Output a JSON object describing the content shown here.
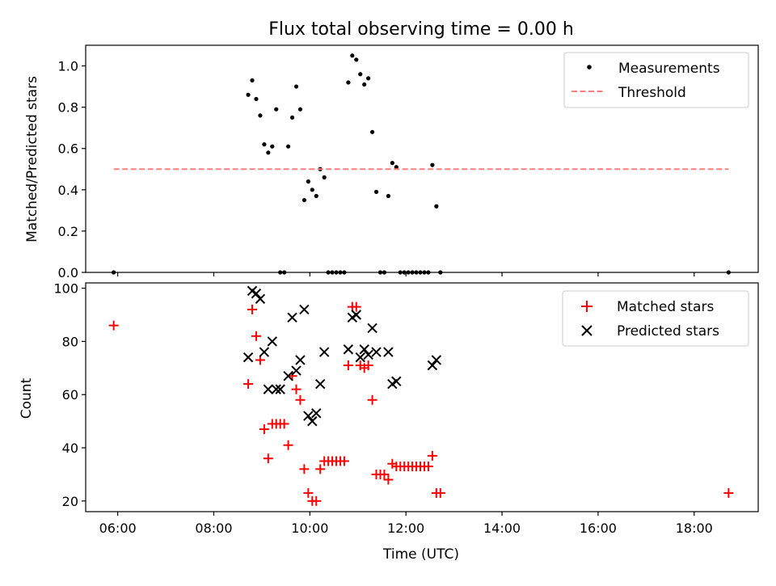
{
  "chart_data": [
    {
      "type": "scatter",
      "title": "Flux total observing time = 0.00 h",
      "xlabel": "",
      "ylabel": "Matched/Predicted stars",
      "xlim": [
        "05:20",
        "19:20"
      ],
      "ylim": [
        0,
        1.1
      ],
      "yticks": [
        0.0,
        0.2,
        0.4,
        0.6,
        0.8,
        1.0
      ],
      "ytick_labels": [
        "0.0",
        "0.2",
        "0.4",
        "0.6",
        "0.8",
        "1.0"
      ],
      "xticks": [
        "06:00",
        "08:00",
        "10:00",
        "12:00",
        "14:00",
        "16:00",
        "18:00"
      ],
      "xtick_labels_shown": false,
      "legend_position": "top-right",
      "series": [
        {
          "name": "Measurements",
          "kind": "points",
          "color": "#000000",
          "x": [
            "05:55",
            "08:43",
            "08:48",
            "08:53",
            "08:58",
            "09:03",
            "09:08",
            "09:13",
            "09:18",
            "09:23",
            "09:28",
            "09:33",
            "09:38",
            "09:43",
            "09:48",
            "09:53",
            "09:58",
            "10:03",
            "10:08",
            "10:13",
            "10:18",
            "10:23",
            "10:28",
            "10:33",
            "10:38",
            "10:43",
            "10:48",
            "10:53",
            "10:58",
            "11:03",
            "11:08",
            "11:13",
            "11:18",
            "11:23",
            "11:28",
            "11:33",
            "11:38",
            "11:43",
            "11:48",
            "11:53",
            "11:58",
            "12:03",
            "12:08",
            "12:13",
            "12:18",
            "12:23",
            "12:28",
            "12:33",
            "12:38",
            "12:43",
            "18:43"
          ],
          "y": [
            0.0,
            0.86,
            0.93,
            0.84,
            0.76,
            0.62,
            0.58,
            0.61,
            0.79,
            0.0,
            0.0,
            0.61,
            0.75,
            0.9,
            0.79,
            0.35,
            0.44,
            0.4,
            0.37,
            0.5,
            0.46,
            0.0,
            0.0,
            0.0,
            0.0,
            0.0,
            0.92,
            1.05,
            1.03,
            0.96,
            0.91,
            0.94,
            0.68,
            0.39,
            0.0,
            0.0,
            0.37,
            0.53,
            0.51,
            0.0,
            0.0,
            0.0,
            0.0,
            0.0,
            0.0,
            0.0,
            0.0,
            0.52,
            0.32,
            0.0,
            0.0
          ]
        },
        {
          "name": "Threshold",
          "kind": "dashed-line",
          "color": "#ff7f7f",
          "x": [
            "05:55",
            "18:43"
          ],
          "y": [
            0.5,
            0.5
          ]
        }
      ]
    },
    {
      "type": "scatter",
      "title": "",
      "xlabel": "Time (UTC)",
      "ylabel": "Count",
      "xlim": [
        "05:20",
        "19:20"
      ],
      "ylim": [
        16,
        102
      ],
      "yticks": [
        20,
        40,
        60,
        80,
        100
      ],
      "ytick_labels": [
        "20",
        "40",
        "60",
        "80",
        "100"
      ],
      "xticks": [
        "06:00",
        "08:00",
        "10:00",
        "12:00",
        "14:00",
        "16:00",
        "18:00"
      ],
      "xtick_labels": [
        "06:00",
        "08:00",
        "10:00",
        "12:00",
        "14:00",
        "16:00",
        "18:00"
      ],
      "legend_position": "top-right",
      "series": [
        {
          "name": "Matched stars",
          "marker": "plus",
          "color": "#ff0000",
          "x": [
            "05:55",
            "08:43",
            "08:48",
            "08:53",
            "08:58",
            "09:03",
            "09:08",
            "09:13",
            "09:18",
            "09:23",
            "09:28",
            "09:33",
            "09:38",
            "09:43",
            "09:48",
            "09:53",
            "09:58",
            "10:03",
            "10:08",
            "10:13",
            "10:18",
            "10:23",
            "10:28",
            "10:33",
            "10:38",
            "10:43",
            "10:48",
            "10:53",
            "10:58",
            "11:03",
            "11:08",
            "11:13",
            "11:18",
            "11:23",
            "11:28",
            "11:33",
            "11:38",
            "11:43",
            "11:48",
            "11:53",
            "11:58",
            "12:03",
            "12:08",
            "12:13",
            "12:18",
            "12:23",
            "12:28",
            "12:33",
            "12:38",
            "12:43",
            "18:43"
          ],
          "y": [
            86,
            64,
            92,
            82,
            73,
            47,
            36,
            49,
            49,
            49,
            49,
            41,
            67,
            62,
            58,
            32,
            23,
            20,
            20,
            32,
            35,
            35,
            35,
            35,
            35,
            35,
            71,
            93,
            93,
            71,
            70,
            71,
            58,
            30,
            30,
            30,
            28,
            34,
            33,
            33,
            33,
            33,
            33,
            33,
            33,
            33,
            33,
            37,
            23,
            23,
            23
          ]
        },
        {
          "name": "Predicted stars",
          "marker": "x",
          "color": "#000000",
          "x": [
            "08:43",
            "08:48",
            "08:53",
            "08:58",
            "09:03",
            "09:08",
            "09:13",
            "09:18",
            "09:23",
            "09:33",
            "09:38",
            "09:43",
            "09:48",
            "09:53",
            "09:58",
            "10:03",
            "10:08",
            "10:13",
            "10:18",
            "10:48",
            "10:53",
            "10:58",
            "11:03",
            "11:08",
            "11:13",
            "11:18",
            "11:23",
            "11:38",
            "11:43",
            "11:48",
            "12:33",
            "12:38"
          ],
          "y": [
            74,
            99,
            98,
            96,
            76,
            62,
            80,
            62,
            62,
            67,
            89,
            69,
            73,
            92,
            52,
            50,
            53,
            64,
            76,
            77,
            89,
            90,
            74,
            77,
            75,
            85,
            76,
            76,
            64,
            65,
            71,
            73
          ]
        }
      ]
    }
  ]
}
